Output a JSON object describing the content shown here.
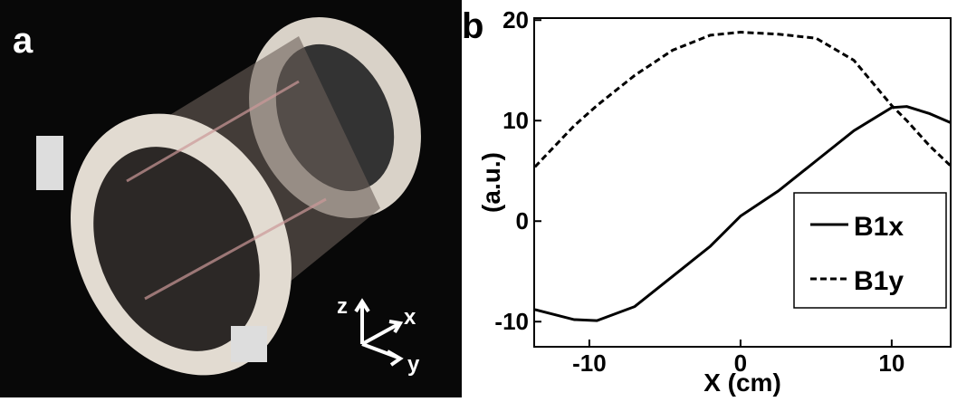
{
  "panel_a": {
    "label": "a",
    "axis_labels": [
      "z",
      "x",
      "y"
    ]
  },
  "panel_b": {
    "label": "b"
  },
  "chart_data": {
    "type": "line",
    "xlabel": "X (cm)",
    "ylabel": "(a.u.)",
    "x": [
      -13.6,
      -11,
      -9.5,
      -7,
      -4.5,
      -2,
      0,
      2.5,
      5,
      7.5,
      10,
      11,
      12.5,
      13.9
    ],
    "series": [
      {
        "name": "B1x",
        "color": "#000000",
        "dash": "solid",
        "values": [
          -8.8,
          -9.8,
          -9.9,
          -8.5,
          -5.5,
          -2.5,
          0.5,
          3,
          6,
          9,
          11.3,
          11.4,
          10.7,
          9.8
        ]
      },
      {
        "name": "B1y",
        "color": "#000000",
        "dash": "dashed",
        "values": [
          5.4,
          9.5,
          11.5,
          14.5,
          17,
          18.5,
          18.8,
          18.6,
          18.2,
          16,
          11.5,
          10,
          7.5,
          5.5
        ]
      }
    ],
    "xlim": [
      -13.65,
      13.9
    ],
    "ylim": [
      -12.5,
      20.2
    ],
    "xticks": [
      -10,
      0,
      10
    ],
    "yticks": [
      -10,
      0,
      10,
      20
    ],
    "legend": "lower-right"
  }
}
